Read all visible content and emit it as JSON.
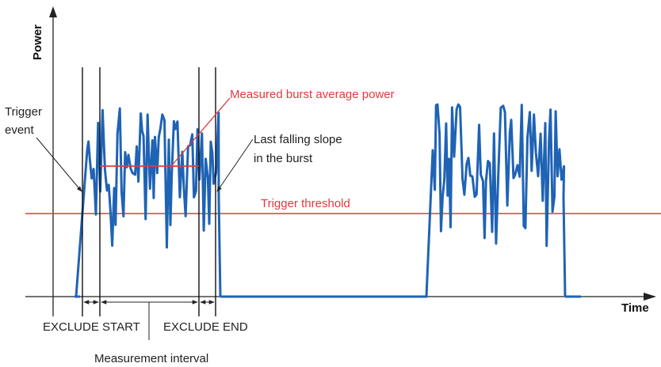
{
  "axes": {
    "y_label": "Power",
    "x_label": "Time"
  },
  "annotations": {
    "trigger_event_line1": "Trigger",
    "trigger_event_line2": "event",
    "measured_burst": "Measured burst average power",
    "last_slope_line1": "Last falling slope",
    "last_slope_line2": "in the burst",
    "trigger_threshold": "Trigger threshold",
    "exclude_start": "EXCLUDE START",
    "exclude_end": "EXCLUDE END",
    "measurement_interval": "Measurement interval"
  },
  "colors": {
    "signal": "#1f63b5",
    "accent": "#e03a3e",
    "axis": "#222222"
  }
}
